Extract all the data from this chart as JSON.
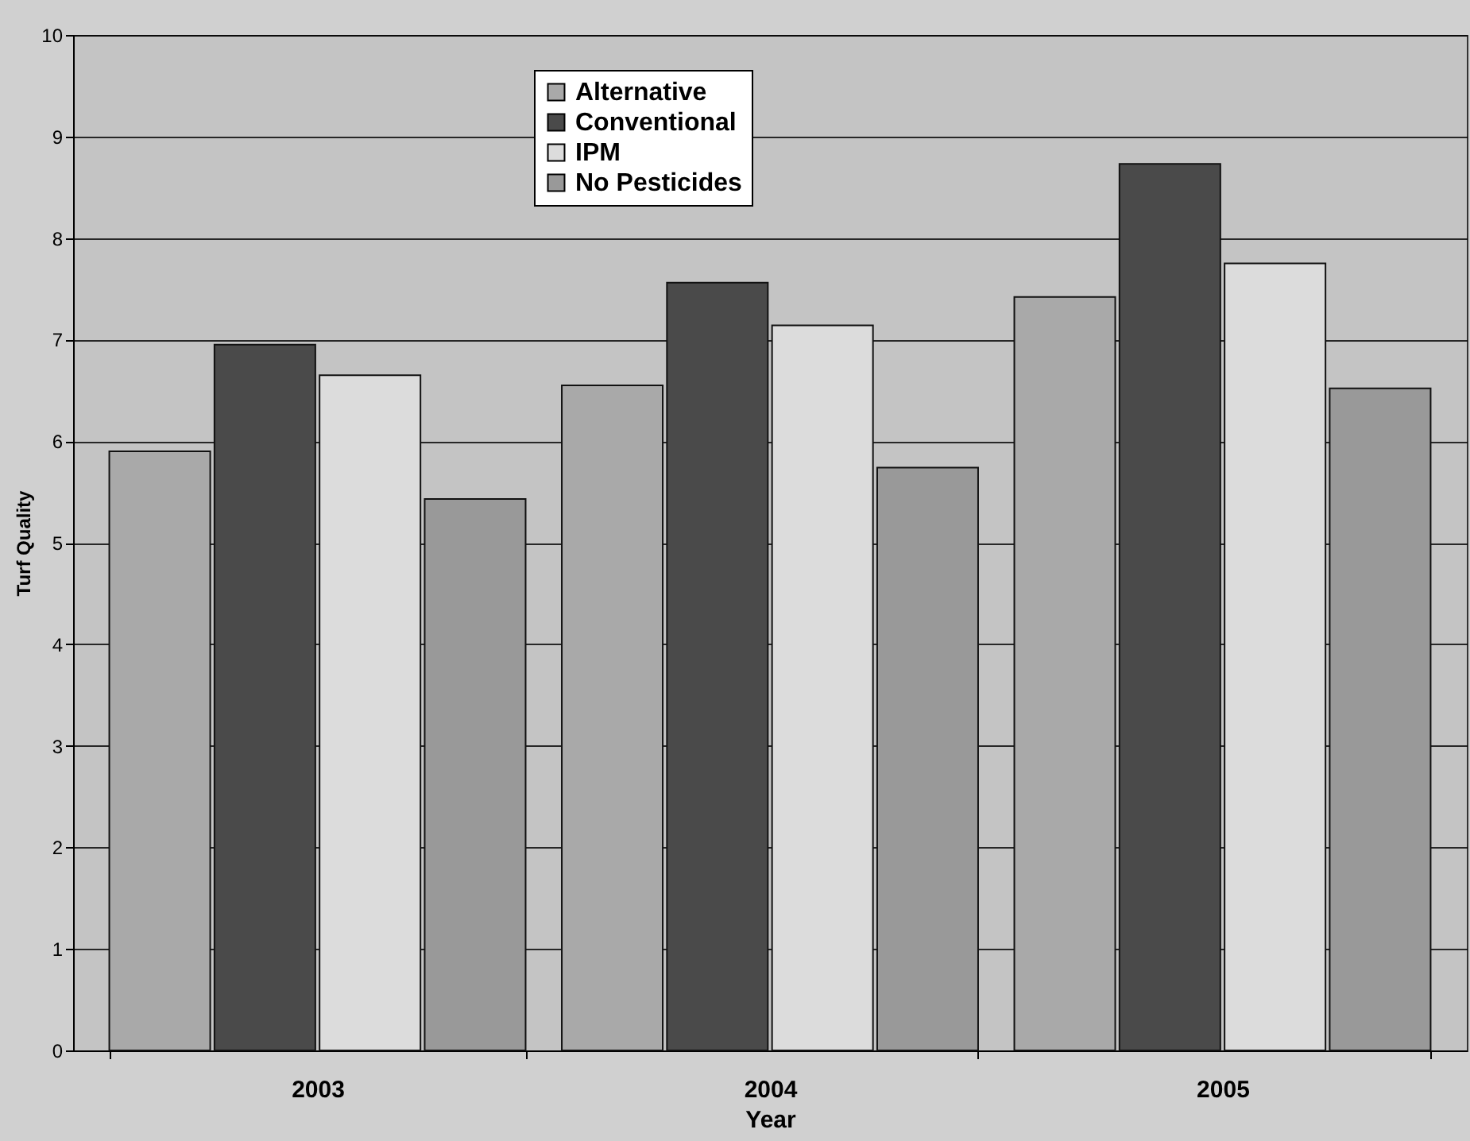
{
  "chart_data": {
    "type": "bar",
    "xlabel": "Year",
    "ylabel": "Turf Quality",
    "categories": [
      "2003",
      "2004",
      "2005"
    ],
    "series": [
      {
        "name": "Alternative",
        "color": "#a9a9a9",
        "values": [
          5.9,
          6.55,
          7.42
        ]
      },
      {
        "name": "Conventional",
        "color": "#4a4a4a",
        "values": [
          6.95,
          7.56,
          8.73
        ]
      },
      {
        "name": "IPM",
        "color": "#dcdcdc",
        "values": [
          6.65,
          7.14,
          7.75
        ]
      },
      {
        "name": "No Pesticides",
        "color": "#999999",
        "values": [
          5.43,
          5.74,
          6.52
        ]
      }
    ],
    "ylim": [
      0,
      10
    ],
    "yticks": [
      0,
      1,
      2,
      3,
      4,
      5,
      6,
      7,
      8,
      9,
      10
    ],
    "grid": "y",
    "legend": "top"
  }
}
